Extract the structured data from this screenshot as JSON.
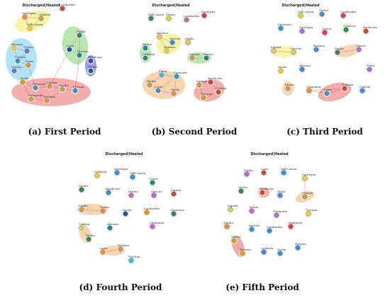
{
  "panels": [
    {
      "title": "Discharged|Healed",
      "caption": "(a) First Period",
      "nodes": [
        "Lombardia",
        "Sardegna",
        "Calabria",
        "Valle Aosta",
        "Puglia",
        "Lazio",
        "Marche",
        "Basilicata",
        "Molise",
        "Abruzzo",
        "Trento",
        "Umbria",
        "Friuli",
        "Veneto",
        "Sicilia",
        "Piemonte",
        "Liguria",
        "Emilia",
        "Campania",
        "Bolzano",
        "Toscana"
      ]
    },
    {
      "title": "Discharged|Healed",
      "caption": "(b) Second Period",
      "nodes": [
        "Valle Aosta",
        "Trento",
        "Lombardia",
        "Sardegna",
        "Molise",
        "Calabria",
        "Bolzano",
        "Marche",
        "Abruzzo",
        "Puglia",
        "Liguria",
        "Veneto",
        "Friuli",
        "Piemonte",
        "Lazio",
        "Sicilia",
        "Emilia",
        "Campania",
        "Basilicata",
        "Toscana",
        "Umbria"
      ]
    },
    {
      "title": "Discharged|Healed",
      "caption": "(c) Third Period",
      "nodes": [
        "Valle Aosta",
        "Molise",
        "Lombardia",
        "Piemonte",
        "Sardegna",
        "Trento",
        "Calabria",
        "Basilicata",
        "Liguria",
        "Marche",
        "Bolzano",
        "Puglia",
        "Veneto",
        "Sicilia",
        "Abruzzo",
        "Friuli",
        "Emilia",
        "Campania",
        "Lazio",
        "Toscana",
        "Umbria"
      ]
    },
    {
      "title": "Discharged|Healed",
      "caption": "(d) Fourth Period",
      "nodes": [
        "Calabria",
        "Sardegna",
        "Valle Aosta",
        "Friuli",
        "Molise",
        "Basilicata",
        "Veneto",
        "Marche",
        "Liguria",
        "Puglia",
        "Trento",
        "Sicilia",
        "Lombardia",
        "Piemonte",
        "Umbria",
        "Abruzzo",
        "Campania",
        "Emilia",
        "Lazio",
        "Bolzano",
        "Toscana"
      ]
    },
    {
      "title": "Discharged|Healed",
      "caption": "(e) Fifth Period",
      "nodes": [
        "Puglia",
        "Lazio",
        "Valle Aosta",
        "Sardegna",
        "Molise",
        "Basilicata",
        "Friuli",
        "Umbria",
        "Liguria",
        "Trento",
        "Piemonte",
        "Toscana",
        "Emilia",
        "Marche",
        "Lombardia",
        "Campania",
        "Veneto",
        "Abruzzo",
        "Calabria",
        "Sicilia",
        "Bolzano"
      ]
    }
  ]
}
